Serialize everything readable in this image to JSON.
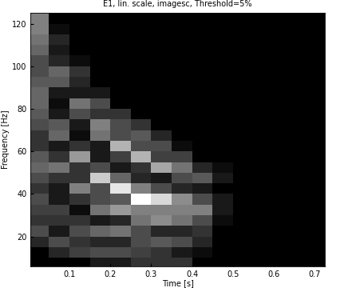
{
  "chart_data": {
    "type": "heatmap",
    "title": "E1, lin. scale, imagesc, Threshold=5%",
    "x_label": "Time [s]",
    "y_label": "Frequency [Hz]",
    "color": "gray",
    "x": [
      0.025,
      0.075,
      0.125,
      0.175,
      0.225,
      0.275,
      0.325,
      0.375,
      0.425,
      0.475,
      0.525,
      0.575,
      0.625,
      0.675,
      0.725
    ],
    "y": [
      7.5,
      12.5,
      17.5,
      22.5,
      27.5,
      32.5,
      37.5,
      42.5,
      47.5,
      52.5,
      57.5,
      62.5,
      67.5,
      72.5,
      77.5,
      82.5,
      87.5,
      92.5,
      97.5,
      102.5,
      107.5,
      112.5,
      117.5,
      122.5
    ],
    "cells": [
      [
        0,
        0,
        0,
        0.1,
        0.1,
        0.2,
        0.2,
        0.2,
        0,
        0,
        0,
        0,
        0,
        0,
        0
      ],
      [
        0,
        0.15,
        0.25,
        0.3,
        0.3,
        0.25,
        0.2,
        0.1,
        0.05,
        0,
        0,
        0,
        0,
        0,
        0
      ],
      [
        0.15,
        0.3,
        0.2,
        0.15,
        0.15,
        0.3,
        0.35,
        0.3,
        0.15,
        0,
        0,
        0,
        0,
        0,
        0
      ],
      [
        0.3,
        0.1,
        0.3,
        0.4,
        0.45,
        0.3,
        0.15,
        0.15,
        0.2,
        0,
        0,
        0,
        0,
        0,
        0
      ],
      [
        0.2,
        0.2,
        0.2,
        0.1,
        0.15,
        0.45,
        0.55,
        0.45,
        0.3,
        0.05,
        0,
        0,
        0,
        0,
        0
      ],
      [
        0.25,
        0.25,
        0.05,
        0.45,
        0.6,
        0.5,
        0.5,
        0.5,
        0.5,
        0.1,
        0,
        0,
        0,
        0,
        0
      ],
      [
        0.3,
        0.1,
        0.2,
        0.3,
        0.35,
        1.0,
        0.85,
        0.55,
        0.3,
        0.1,
        0,
        0,
        0,
        0,
        0
      ],
      [
        0.2,
        0.1,
        0.5,
        0.3,
        0.9,
        0.5,
        0.3,
        0.15,
        0.1,
        0,
        0,
        0,
        0,
        0,
        0
      ],
      [
        0.3,
        0.2,
        0.2,
        0.8,
        0.4,
        0.15,
        0.1,
        0.3,
        0.35,
        0.1,
        0,
        0,
        0,
        0,
        0
      ],
      [
        0.4,
        0.45,
        0.2,
        0.3,
        0.1,
        0.2,
        0.65,
        0.45,
        0.15,
        0.05,
        0,
        0,
        0,
        0,
        0
      ],
      [
        0.35,
        0.2,
        0.6,
        0.1,
        0.25,
        0.7,
        0.25,
        0.25,
        0,
        0,
        0,
        0,
        0,
        0,
        0
      ],
      [
        0.2,
        0.1,
        0.2,
        0.1,
        0.7,
        0.3,
        0.3,
        0.05,
        0,
        0,
        0,
        0,
        0,
        0,
        0
      ],
      [
        0.2,
        0.4,
        0.05,
        0.45,
        0.3,
        0.35,
        0.15,
        0,
        0,
        0,
        0,
        0,
        0,
        0,
        0
      ],
      [
        0.3,
        0.35,
        0.1,
        0.5,
        0.3,
        0.2,
        0,
        0,
        0,
        0,
        0,
        0,
        0,
        0,
        0
      ],
      [
        0.35,
        0.1,
        0.3,
        0.2,
        0.2,
        0,
        0,
        0,
        0,
        0,
        0,
        0,
        0,
        0,
        0
      ],
      [
        0.4,
        0.05,
        0.45,
        0.3,
        0,
        0,
        0,
        0,
        0,
        0,
        0,
        0,
        0,
        0,
        0
      ],
      [
        0.4,
        0.1,
        0.1,
        0.1,
        0,
        0,
        0,
        0,
        0,
        0,
        0,
        0,
        0,
        0,
        0
      ],
      [
        0.35,
        0.35,
        0.15,
        0,
        0,
        0,
        0,
        0,
        0,
        0,
        0,
        0,
        0,
        0,
        0
      ],
      [
        0.3,
        0.4,
        0.2,
        0,
        0,
        0,
        0,
        0,
        0,
        0,
        0,
        0,
        0,
        0,
        0
      ],
      [
        0.3,
        0.15,
        0.05,
        0,
        0,
        0,
        0,
        0,
        0,
        0,
        0,
        0,
        0,
        0,
        0
      ],
      [
        0.4,
        0.1,
        0,
        0,
        0,
        0,
        0,
        0,
        0,
        0,
        0,
        0,
        0,
        0,
        0
      ],
      [
        0.45,
        0.15,
        0,
        0,
        0,
        0,
        0,
        0,
        0,
        0,
        0,
        0,
        0,
        0,
        0
      ],
      [
        0.5,
        0.05,
        0,
        0,
        0,
        0,
        0,
        0,
        0,
        0,
        0,
        0,
        0,
        0,
        0
      ],
      [
        0.5,
        0,
        0,
        0,
        0,
        0,
        0,
        0,
        0,
        0,
        0,
        0,
        0,
        0,
        0
      ]
    ],
    "xlim": [
      0.005,
      0.725
    ],
    "ylim": [
      6,
      125
    ],
    "xticks": [
      0.1,
      0.2,
      0.3,
      0.4,
      0.5,
      0.6,
      0.7
    ],
    "yticks": [
      20,
      40,
      60,
      80,
      100,
      120
    ]
  }
}
